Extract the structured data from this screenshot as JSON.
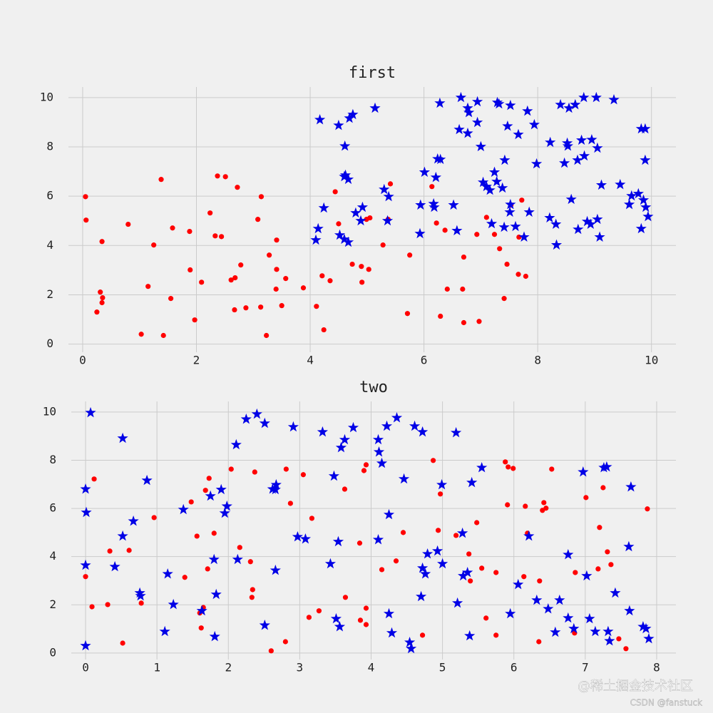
{
  "chart_data": [
    {
      "type": "scatter",
      "title": "first",
      "xlim": [
        -0.25,
        10.43
      ],
      "ylim": [
        -0.33,
        10.43
      ],
      "xticks": [
        0,
        2,
        4,
        6,
        8,
        10
      ],
      "yticks": [
        0,
        2,
        4,
        6,
        8,
        10
      ],
      "grid": true,
      "series": [
        {
          "color": "#ff0000",
          "marker": "circle",
          "x": [
            0.05,
            0.06,
            0.34,
            0.31,
            0.35,
            0.34,
            0.25,
            0.8,
            1.25,
            1.38,
            1.03,
            1.42,
            1.15,
            1.58,
            1.55,
            1.88,
            1.89,
            1.97,
            2.09,
            2.24,
            2.37,
            2.51,
            2.33,
            2.44,
            2.72,
            2.78,
            2.61,
            2.68,
            2.67,
            2.87,
            3.08,
            3.14,
            3.13,
            3.23,
            3.28,
            3.41,
            3.41,
            3.4,
            3.5,
            3.57,
            3.88,
            4.11,
            4.24,
            4.21,
            4.35,
            4.44,
            4.5,
            4.74,
            4.9,
            4.91,
            5.03,
            4.99,
            5.05,
            5.28,
            5.37,
            5.41,
            5.75,
            5.71,
            6.14,
            6.22,
            6.29,
            6.37,
            6.41,
            6.68,
            6.7,
            6.7,
            6.97,
            6.93,
            7.1,
            7.24,
            7.33,
            7.41,
            7.46,
            7.53,
            7.67,
            7.66,
            7.72,
            7.79
          ],
          "y": [
            5.98,
            5.03,
            4.16,
            2.11,
            1.88,
            1.68,
            1.3,
            4.86,
            4.02,
            6.68,
            0.4,
            0.35,
            2.34,
            4.71,
            1.85,
            4.57,
            3.01,
            0.98,
            2.51,
            5.32,
            6.82,
            6.79,
            4.39,
            4.36,
            6.36,
            3.21,
            2.6,
            2.69,
            1.39,
            1.47,
            5.06,
            5.98,
            1.5,
            0.35,
            3.61,
            4.22,
            3.03,
            2.23,
            1.56,
            2.66,
            2.28,
            1.53,
            0.58,
            2.77,
            2.57,
            6.18,
            4.88,
            3.24,
            3.15,
            2.51,
            3.03,
            5.06,
            5.12,
            4.02,
            5.06,
            6.5,
            3.61,
            1.24,
            6.39,
            4.91,
            1.13,
            4.62,
            2.23,
            2.23,
            0.87,
            3.53,
            0.92,
            4.45,
            5.14,
            4.45,
            3.87,
            1.85,
            3.24,
            5.64,
            4.34,
            2.83,
            5.84,
            2.75
          ]
        },
        {
          "color": "#0000e6",
          "marker": "star",
          "x": [
            4.17,
            4.5,
            4.69,
            4.75,
            5.14,
            4.61,
            4.62,
            4.67,
            4.6,
            4.24,
            4.14,
            4.1,
            4.52,
            4.6,
            4.67,
            4.8,
            4.92,
            4.89,
            5.3,
            5.38,
            5.36,
            5.94,
            6.01,
            5.93,
            6.17,
            6.18,
            6.21,
            6.24,
            6.29,
            6.28,
            6.65,
            6.77,
            6.79,
            6.94,
            6.62,
            6.77,
            6.94,
            7.0,
            7.04,
            7.1,
            7.16,
            7.24,
            7.28,
            7.29,
            7.32,
            7.38,
            7.42,
            7.47,
            7.52,
            7.52,
            7.51,
            7.66,
            7.82,
            7.94,
            7.98,
            7.85,
            7.76,
            7.61,
            7.41,
            7.19,
            6.58,
            6.52,
            8.22,
            8.21,
            8.32,
            8.33,
            8.4,
            8.47,
            8.52,
            8.53,
            8.55,
            8.66,
            8.81,
            9.03,
            8.77,
            8.95,
            9.05,
            8.82,
            8.7,
            8.59,
            8.71,
            8.87,
            8.93,
            9.05,
            9.09,
            9.12,
            9.34,
            9.45,
            9.61,
            9.65,
            9.77,
            9.86,
            9.82,
            9.89,
            9.89,
            9.9,
            9.82,
            9.94
          ],
          "y": [
            9.1,
            8.87,
            9.16,
            9.31,
            9.57,
            8.03,
            6.85,
            6.68,
            6.79,
            5.52,
            4.68,
            4.22,
            4.42,
            4.25,
            4.13,
            5.32,
            5.55,
            5.0,
            6.27,
            5.98,
            5.0,
            5.64,
            6.97,
            4.48,
            5.69,
            5.55,
            6.76,
            7.51,
            7.49,
            9.77,
            10.0,
            9.57,
            9.39,
            9.83,
            8.7,
            8.55,
            8.99,
            8.01,
            6.56,
            6.39,
            6.24,
            6.97,
            6.59,
            9.8,
            9.74,
            6.33,
            7.46,
            8.84,
            9.68,
            5.66,
            5.35,
            8.5,
            9.45,
            8.9,
            7.31,
            5.35,
            4.34,
            4.77,
            4.74,
            4.88,
            4.6,
            5.64,
            8.18,
            5.12,
            4.86,
            4.02,
            9.71,
            7.34,
            8.15,
            8.03,
            9.57,
            9.71,
            10.0,
            10.0,
            8.27,
            8.29,
            7.95,
            7.63,
            7.46,
            5.87,
            4.65,
            4.97,
            4.86,
            5.06,
            4.34,
            6.45,
            9.91,
            6.47,
            5.66,
            6.01,
            6.1,
            5.84,
            8.73,
            8.73,
            7.46,
            5.55,
            4.68,
            5.17
          ]
        }
      ]
    },
    {
      "type": "scatter",
      "title": "two",
      "xlim": [
        -0.2,
        8.27
      ],
      "ylim": [
        -0.27,
        10.44
      ],
      "xticks": [
        0,
        1,
        2,
        3,
        4,
        5,
        6,
        7,
        8
      ],
      "yticks": [
        0,
        2,
        4,
        6,
        8,
        10
      ],
      "grid": true,
      "series": [
        {
          "color": "#ff0000",
          "marker": "circle",
          "x": [
            0,
            0.09,
            0.12,
            0.31,
            0.34,
            0.52,
            0.61,
            0.78,
            0.96,
            1.39,
            1.48,
            1.56,
            1.6,
            1.62,
            1.65,
            1.68,
            1.71,
            1.73,
            1.8,
            2.04,
            2.16,
            2.31,
            2.34,
            2.33,
            2.37,
            2.6,
            2.8,
            2.81,
            2.87,
            3.05,
            3.13,
            3.17,
            3.27,
            3.63,
            3.64,
            3.84,
            3.85,
            3.9,
            3.93,
            3.93,
            3.93,
            4.15,
            4.35,
            4.45,
            4.72,
            4.87,
            4.94,
            4.97,
            5.19,
            5.37,
            5.39,
            5.48,
            5.55,
            5.61,
            5.75,
            5.75,
            5.88,
            5.91,
            5.92,
            5.99,
            6.14,
            6.16,
            6.19,
            6.35,
            6.36,
            6.4,
            6.42,
            6.45,
            6.53,
            6.86,
            6.85,
            7.01,
            7.18,
            7.2,
            7.25,
            7.31,
            7.36,
            7.47,
            7.57,
            7.87
          ],
          "y": [
            3.17,
            1.92,
            7.22,
            2.01,
            4.23,
            0.41,
            4.26,
            2.07,
            5.62,
            3.14,
            6.27,
            4.85,
            1.66,
            1.04,
            1.89,
            6.75,
            3.49,
            7.25,
            4.97,
            7.63,
            4.38,
            3.79,
            2.63,
            2.31,
            7.51,
            0.09,
            0.47,
            7.63,
            6.21,
            7.4,
            1.48,
            5.59,
            1.75,
            6.8,
            2.31,
            4.56,
            1.36,
            7.57,
            7.81,
            1.18,
            1.86,
            3.46,
            3.82,
            5.0,
            0.74,
            7.99,
            5.09,
            6.6,
            4.88,
            4.11,
            2.99,
            5.41,
            3.52,
            1.45,
            0.74,
            3.34,
            7.93,
            6.15,
            7.72,
            7.66,
            3.17,
            6.09,
            4.97,
            0.47,
            2.99,
            5.92,
            6.24,
            6.01,
            7.63,
            3.34,
            0.83,
            6.45,
            3.49,
            5.21,
            6.86,
            4.2,
            3.67,
            0.59,
            0.18,
            5.98
          ]
        },
        {
          "color": "#0000e6",
          "marker": "star",
          "x": [
            0,
            0.01,
            0,
            0,
            0.07,
            0.52,
            0.52,
            0.41,
            0.67,
            0.76,
            0.77,
            0.86,
            1.15,
            1.11,
            1.23,
            1.37,
            1.63,
            1.75,
            1.8,
            1.83,
            1.81,
            1.9,
            1.95,
            1.98,
            2.11,
            2.13,
            2.25,
            2.4,
            2.51,
            2.51,
            2.62,
            2.67,
            2.66,
            2.66,
            2.91,
            2.97,
            3.08,
            3.32,
            3.43,
            3.48,
            3.51,
            3.54,
            3.56,
            3.58,
            3.63,
            3.75,
            4.1,
            4.1,
            4.11,
            4.15,
            4.22,
            4.25,
            4.25,
            4.29,
            4.36,
            4.46,
            4.54,
            4.56,
            4.61,
            4.7,
            4.72,
            4.72,
            4.76,
            4.79,
            4.93,
            4.99,
            5.0,
            5.19,
            5.21,
            5.28,
            5.29,
            5.35,
            5.38,
            5.41,
            5.55,
            5.95,
            6.06,
            6.21,
            6.32,
            6.48,
            6.58,
            6.64,
            6.76,
            6.76,
            6.84,
            6.97,
            7.02,
            7.06,
            7.14,
            7.26,
            7.3,
            7.32,
            7.34,
            7.42,
            7.62,
            7.61,
            7.64,
            7.81,
            7.85,
            7.89
          ],
          "y": [
            6.8,
            5.83,
            3.64,
            0.3,
            9.97,
            8.91,
            4.85,
            3.58,
            5.47,
            2.49,
            2.37,
            7.16,
            3.28,
            0.89,
            2.01,
            5.95,
            1.75,
            6.51,
            3.88,
            2.43,
            0.68,
            6.78,
            5.8,
            6.09,
            8.64,
            3.88,
            9.7,
            9.91,
            9.53,
            1.15,
            6.8,
            6.98,
            6.78,
            3.43,
            9.38,
            4.82,
            4.73,
            9.17,
            3.7,
            7.34,
            1.42,
            4.62,
            1.09,
            8.52,
            8.85,
            9.35,
            4.7,
            8.85,
            8.34,
            7.87,
            9.41,
            5.74,
            1.63,
            0.83,
            9.76,
            7.22,
            0.44,
            0.18,
            9.41,
            2.34,
            9.17,
            3.52,
            3.28,
            4.11,
            4.23,
            6.98,
            3.7,
            9.14,
            2.07,
            4.97,
            3.2,
            3.34,
            0.71,
            7.07,
            7.69,
            1.63,
            2.84,
            4.85,
            2.19,
            1.83,
            0.86,
            2.19,
            4.08,
            1.45,
            1.01,
            7.51,
            3.2,
            1.42,
            0.89,
            7.69,
            7.72,
            0.89,
            0.5,
            2.49,
            1.75,
            4.41,
            6.89,
            1.09,
            1.01,
            0.59
          ]
        }
      ]
    }
  ],
  "watermark": [
    "@稀土掘金技术社区",
    "CSDN @fanstuck"
  ]
}
